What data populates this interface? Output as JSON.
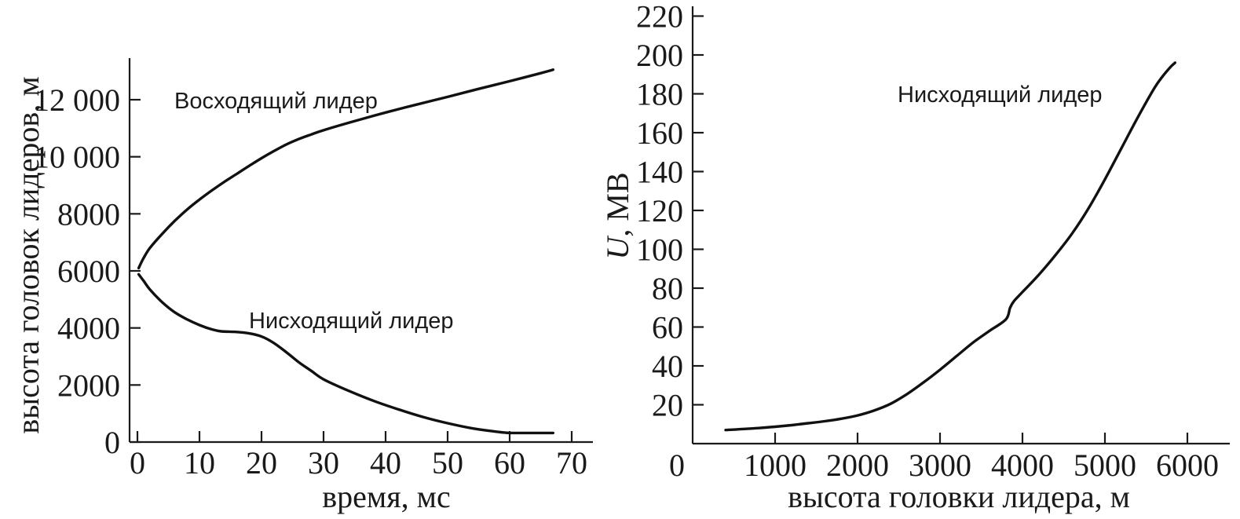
{
  "chart_data": [
    {
      "type": "line",
      "xlabel": "время, мс",
      "ylabel": "высота головок лидеров, м",
      "xlim": [
        0,
        70
      ],
      "ylim": [
        0,
        12000
      ],
      "xticks": [
        0,
        10,
        20,
        30,
        40,
        50,
        60,
        70
      ],
      "yticks": [
        0,
        2000,
        4000,
        6000,
        8000,
        10000,
        12000
      ],
      "ytick_labels": [
        "0",
        "2000",
        "4000",
        "6000",
        "8000",
        "10 000",
        "12 000"
      ],
      "series": [
        {
          "name": "Восходящий лидер",
          "x": [
            0.2,
            1,
            2,
            4,
            6,
            8,
            10,
            12,
            14,
            16,
            18,
            20,
            22,
            24,
            26,
            28,
            30,
            35,
            40,
            45,
            50,
            55,
            60,
            65,
            67
          ],
          "y": [
            6100,
            6450,
            6800,
            7300,
            7750,
            8150,
            8500,
            8820,
            9120,
            9400,
            9680,
            9950,
            10200,
            10430,
            10620,
            10780,
            10930,
            11250,
            11550,
            11830,
            12100,
            12380,
            12650,
            12930,
            13050
          ]
        },
        {
          "name": "Нисходящий лидер",
          "x": [
            0.2,
            1,
            2,
            4,
            6,
            8,
            10,
            12,
            13.5,
            16,
            18,
            20,
            22,
            24,
            26,
            28,
            30,
            34,
            38,
            42,
            46,
            50,
            54,
            58,
            60,
            63,
            67
          ],
          "y": [
            5880,
            5650,
            5350,
            4900,
            4550,
            4300,
            4100,
            3950,
            3880,
            3860,
            3810,
            3700,
            3470,
            3150,
            2800,
            2500,
            2200,
            1800,
            1450,
            1150,
            880,
            660,
            480,
            360,
            320,
            320,
            320
          ]
        }
      ],
      "annotations": [
        "Восходящий лидер",
        "Нисходящий лидер"
      ]
    },
    {
      "type": "line",
      "xlabel": "высота головки лидера, м",
      "ylabel_italic": "U",
      "ylabel_rest": ", МВ",
      "xlim": [
        0,
        6500
      ],
      "ylim": [
        0,
        220
      ],
      "xticks": [
        1000,
        2000,
        3000,
        4000,
        5000,
        6000
      ],
      "yticks": [
        20,
        40,
        60,
        80,
        100,
        120,
        140,
        160,
        180,
        200,
        220
      ],
      "origin_label": "0",
      "series": [
        {
          "name": "Нисходящий лидер",
          "x": [
            400,
            600,
            800,
            1000,
            1200,
            1400,
            1600,
            1800,
            2000,
            2200,
            2400,
            2600,
            2800,
            3000,
            3200,
            3400,
            3600,
            3800,
            3850,
            3900,
            4000,
            4200,
            4400,
            4600,
            4800,
            5000,
            5200,
            5400,
            5600,
            5700,
            5800,
            5850
          ],
          "y": [
            7,
            7.5,
            8,
            8.7,
            9.5,
            10.5,
            11.5,
            12.8,
            14.5,
            17,
            20.5,
            25.5,
            31.5,
            38,
            45,
            52,
            58,
            64,
            70,
            73.5,
            78,
            87,
            97,
            108,
            121,
            136,
            152,
            168,
            183,
            189,
            194,
            196
          ]
        }
      ],
      "annotations": [
        "Нисходящий лидер"
      ]
    }
  ]
}
